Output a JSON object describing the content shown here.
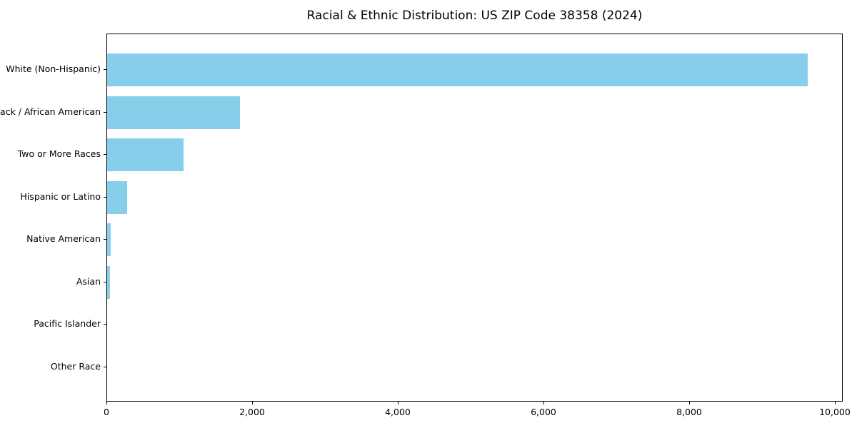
{
  "chart_data": {
    "type": "bar",
    "orientation": "horizontal",
    "title": "Racial & Ethnic Distribution: US ZIP Code 38358 (2024)",
    "categories": [
      "White (Non-Hispanic)",
      "Black / African American",
      "Two or More Races",
      "Hispanic or Latino",
      "Native American",
      "Asian",
      "Pacific Islander",
      "Other Race"
    ],
    "values": [
      9620,
      1820,
      1050,
      270,
      45,
      35,
      0,
      0
    ],
    "xlabel": "",
    "ylabel": "",
    "xlim": [
      0,
      10108
    ],
    "xticks": [
      0,
      2000,
      4000,
      6000,
      8000,
      10000
    ],
    "xtick_labels": [
      "0",
      "2,000",
      "4,000",
      "6,000",
      "8,000",
      "10,000"
    ],
    "bar_color": "#87CEEB",
    "axis_color": "#000000",
    "background_color": "#ffffff",
    "grid": false,
    "legend": null
  }
}
